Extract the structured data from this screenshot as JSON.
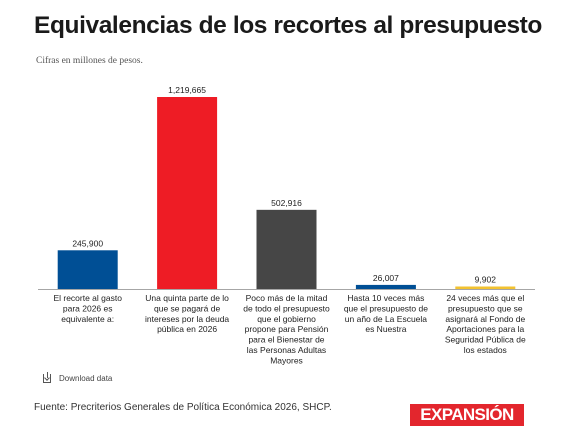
{
  "header": {
    "title": "Equivalencias de los recortes al presupuesto",
    "subtitle": "Cifras en millones de pesos."
  },
  "chart_data": {
    "type": "bar",
    "categories": [
      "El recorte al gasto para 2026 es equivalente a:",
      "Una quinta parte de lo que se pagará de intereses por la deuda pública en 2026",
      "Poco más de la mitad de todo el presupuesto que el gobierno propone para Pensión para el Bienestar de las Personas Adultas Mayores",
      "Hasta 10 veces más que el presupuesto de un año de La Escuela es Nuestra",
      "24 veces más que el presupuesto que se asignará al Fondo de Aportaciones para la Seguridad Pública de los estados"
    ],
    "category_lines": [
      [
        "El recorte al gasto",
        "para 2026 es",
        "equivalente a:"
      ],
      [
        "Una quinta parte de lo",
        "que se pagará de",
        "intereses por la deuda",
        "pública en 2026"
      ],
      [
        "Poco más de la mitad",
        "de todo el presupuesto",
        "que el gobierno",
        "propone para Pensión",
        "para el Bienestar de",
        "las Personas Adultas",
        "Mayores"
      ],
      [
        "Hasta 10 veces más",
        "que el presupuesto de",
        "un año de La Escuela",
        "es Nuestra"
      ],
      [
        "24 veces más que el",
        "presupuesto que se",
        "asignará al Fondo de",
        "Aportaciones para la",
        "Seguridad Pública de",
        "los estados"
      ]
    ],
    "values": [
      245900,
      1219665,
      502916,
      26007,
      9902
    ],
    "value_labels": [
      "245,900",
      "1,219,665",
      "502,916",
      "26,007",
      "9,902"
    ],
    "colors": [
      "#004f95",
      "#ee1c25",
      "#464646",
      "#004f95",
      "#f2c230"
    ],
    "ylim": [
      0,
      1219665
    ],
    "xlabel": "",
    "ylabel": "",
    "grid": false,
    "legend": "none"
  },
  "footer": {
    "download_label": "Download data",
    "download_icon": "download-icon",
    "source": "Fuente: Precriterios Generales de Política Económica 2026, SHCP.",
    "logo_text": "EXPANSIÓN",
    "logo_color": "#e3262d"
  }
}
